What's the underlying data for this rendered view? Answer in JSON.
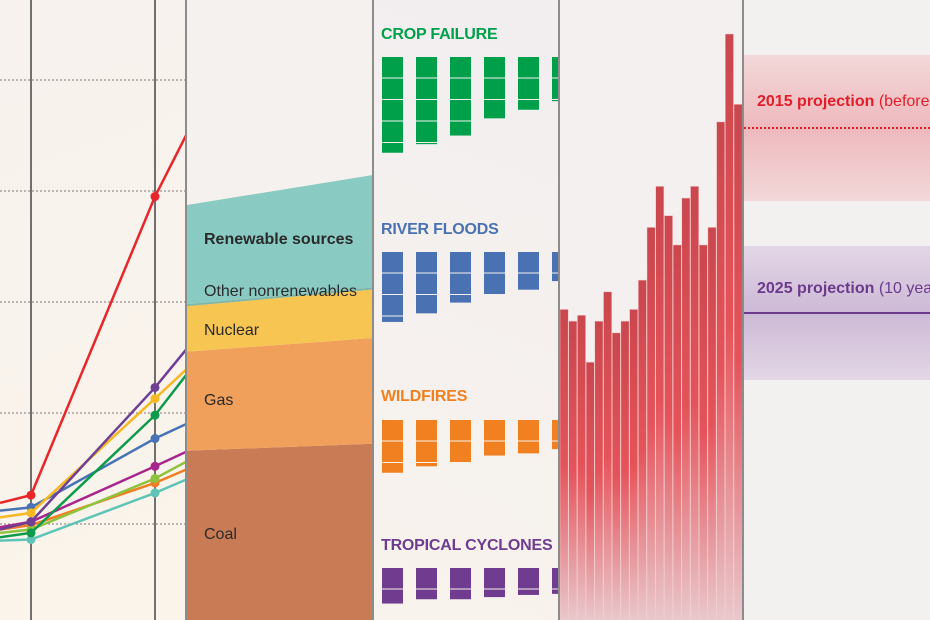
{
  "chart_data": [
    {
      "type": "line",
      "grid": true,
      "series": [
        {
          "color": "#e8262b",
          "values": [
            0.19,
            0.26,
            2.95,
            3.5
          ]
        },
        {
          "color": "#6f3f94",
          "values": [
            -0.05,
            0.02,
            1.23,
            1.57
          ]
        },
        {
          "color": "#f6b823",
          "values": [
            0.06,
            0.1,
            1.13,
            1.39
          ]
        },
        {
          "color": "#0d9b4b",
          "values": [
            -0.12,
            -0.08,
            0.98,
            1.34
          ]
        },
        {
          "color": "#4873b4",
          "values": [
            0.12,
            0.15,
            0.77,
            0.9
          ]
        },
        {
          "color": "#a8258e",
          "values": [
            -0.03,
            0.02,
            0.52,
            0.65
          ]
        },
        {
          "color": "#8fc23f",
          "values": [
            -0.08,
            -0.05,
            0.41,
            0.56
          ]
        },
        {
          "color": "#f07f23",
          "values": [
            -0.05,
            -0.01,
            0.37,
            0.49
          ]
        },
        {
          "color": "#5fc4b8",
          "values": [
            -0.15,
            -0.14,
            0.28,
            0.4
          ]
        }
      ]
    },
    {
      "type": "area",
      "stacked": true,
      "series": [
        {
          "name": "Coal",
          "color": "#c97b55",
          "values": [
            41,
            40
          ]
        },
        {
          "name": "Gas",
          "color": "#f0a05a",
          "values": [
            24,
            24
          ]
        },
        {
          "name": "Nuclear",
          "color": "#f7c552",
          "values": [
            11,
            11
          ]
        },
        {
          "name": "Other nonrenewables",
          "color": "#7fb6a8",
          "values": [
            0.5,
            0.5
          ]
        },
        {
          "name": "Renewable sources",
          "bold": true,
          "color": "#89cbc2",
          "values": [
            24,
            25.5
          ]
        }
      ]
    },
    {
      "type": "bar",
      "variant": "stacked-blocks",
      "series": [
        {
          "name": "CROP FAILURE",
          "color": "#00a04a",
          "values": [
            4.5,
            4.1,
            3.7,
            2.9,
            2.5,
            2.1
          ]
        },
        {
          "name": "RIVER FLOODS",
          "color": "#4a72b3",
          "values": [
            3.3,
            2.9,
            2.4,
            2.0,
            1.8,
            1.4
          ]
        },
        {
          "name": "WILDFIRES",
          "color": "#f08020",
          "values": [
            2.5,
            2.2,
            2.0,
            1.7,
            1.6,
            1.4
          ]
        },
        {
          "name": "TROPICAL CYCLONES",
          "color": "#6f3c90",
          "values": [
            1.7,
            1.5,
            1.5,
            1.4,
            1.3,
            1.25
          ]
        }
      ]
    },
    {
      "type": "bar",
      "color": "#e5535a",
      "values": [
        53,
        51,
        52,
        44,
        51,
        56,
        49,
        51,
        53,
        58,
        67,
        74,
        69,
        64,
        72,
        74,
        64,
        67,
        85,
        100,
        88
      ]
    },
    {
      "type": "annotation",
      "items": [
        {
          "bold": "2015 projection",
          "rest": "(before",
          "color": "#e31d2a",
          "band": "#f0c4c6",
          "line": "dotted"
        },
        {
          "bold": "2025 projection",
          "rest": "(10 yea",
          "color": "#6b3a8c",
          "band": "#dccbe0",
          "line": "solid"
        }
      ]
    }
  ]
}
